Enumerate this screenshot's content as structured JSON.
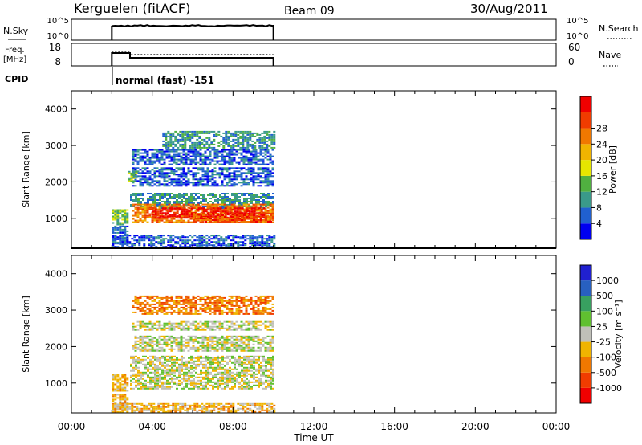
{
  "header": {
    "station": "Kerguelen (fitACF)",
    "beam": "Beam 09",
    "date": "30/Aug/2011"
  },
  "strips": {
    "nsky": {
      "label": "N.Sky",
      "ticks_left": [
        "10^5",
        "10^0"
      ],
      "ticks_right": [
        "10^5",
        "10^0"
      ],
      "right_label": "N.Search",
      "start_time": 2.0,
      "end_time": 10.0
    },
    "freq": {
      "label_line1": "Freq.",
      "label_line2": "[MHz]",
      "ticks_left": [
        "18",
        "8"
      ],
      "ticks_right": [
        "60",
        "0"
      ],
      "right_label": "Nave",
      "start_time": 2.0,
      "end_time": 10.0
    },
    "cpid": {
      "label": "CPID",
      "mode": "normal (fast) -151",
      "start_time": 2.0
    }
  },
  "chart_data": [
    {
      "type": "heatmap",
      "name": "power",
      "xlabel": "",
      "ylabel": "Slant Range [km]",
      "x_range_hours": [
        0,
        24
      ],
      "y_range_km": [
        180,
        4500
      ],
      "y_ticks": [
        1000,
        2000,
        3000,
        4000
      ],
      "colorbar": {
        "label": "Power [dB]",
        "ticks": [
          "4",
          "8",
          "12",
          "16",
          "20",
          "24",
          "28"
        ],
        "colors": [
          "#0000f0",
          "#2060d0",
          "#3a9a8a",
          "#50b040",
          "#e6e600",
          "#f0b400",
          "#f07800",
          "#f03c00",
          "#f00000"
        ]
      },
      "regions": [
        {
          "t0": 2.0,
          "t1": 2.8,
          "r0": 850,
          "r1": 1250,
          "level": 3
        },
        {
          "t0": 2.0,
          "t1": 2.8,
          "r0": 300,
          "r1": 800,
          "level": 1
        },
        {
          "t0": 2.9,
          "t1": 10.0,
          "r0": 1300,
          "r1": 1700,
          "level": 2
        },
        {
          "t0": 3.0,
          "t1": 10.0,
          "r0": 900,
          "r1": 1400,
          "level": 6
        },
        {
          "t0": 4.0,
          "t1": 9.5,
          "r0": 1000,
          "r1": 1300,
          "level": 8
        },
        {
          "t0": 6.0,
          "t1": 10.0,
          "r0": 900,
          "r1": 1150,
          "level": 7
        },
        {
          "t0": 3.0,
          "t1": 10.0,
          "r0": 1900,
          "r1": 2400,
          "level": 1
        },
        {
          "t0": 3.0,
          "t1": 10.0,
          "r0": 2500,
          "r1": 2900,
          "level": 1
        },
        {
          "t0": 4.5,
          "t1": 10.0,
          "r0": 2950,
          "r1": 3400,
          "level": 2
        },
        {
          "t0": 2.8,
          "t1": 3.2,
          "r0": 2000,
          "r1": 2300,
          "level": 3
        },
        {
          "t0": 2.0,
          "t1": 10.0,
          "r0": 200,
          "r1": 550,
          "level": 1
        }
      ]
    },
    {
      "type": "heatmap",
      "name": "velocity",
      "xlabel": "Time UT",
      "ylabel": "Slant Range [km]",
      "x_range_hours": [
        0,
        24
      ],
      "x_ticks": [
        "00:00",
        "04:00",
        "08:00",
        "12:00",
        "16:00",
        "20:00",
        "00:00"
      ],
      "y_range_km": [
        180,
        4500
      ],
      "y_ticks": [
        1000,
        2000,
        3000,
        4000
      ],
      "colorbar": {
        "label": "Velocity [m s⁻¹]",
        "ticks": [
          "1000",
          "500",
          "100",
          "25",
          "-25",
          "-100",
          "-500",
          "-1000"
        ],
        "colors": [
          "#2020d0",
          "#2860c0",
          "#38a060",
          "#60c030",
          "#c0c0b8",
          "#f0b400",
          "#f07800",
          "#f03c00",
          "#f00000"
        ]
      },
      "regions": [
        {
          "t0": 2.0,
          "t1": 2.8,
          "r0": 800,
          "r1": 1250,
          "level": 5
        },
        {
          "t0": 2.0,
          "t1": 2.8,
          "r0": 300,
          "r1": 700,
          "level": 5
        },
        {
          "t0": 2.9,
          "t1": 10.0,
          "r0": 850,
          "r1": 1750,
          "level": 4
        },
        {
          "t0": 3.0,
          "t1": 10.0,
          "r0": 1900,
          "r1": 2300,
          "level": 4
        },
        {
          "t0": 3.0,
          "t1": 10.0,
          "r0": 2450,
          "r1": 2700,
          "level": 4
        },
        {
          "t0": 3.0,
          "t1": 10.0,
          "r0": 2900,
          "r1": 3400,
          "level": 6
        },
        {
          "t0": 2.0,
          "t1": 10.0,
          "r0": 200,
          "r1": 450,
          "level": 5
        }
      ]
    }
  ]
}
